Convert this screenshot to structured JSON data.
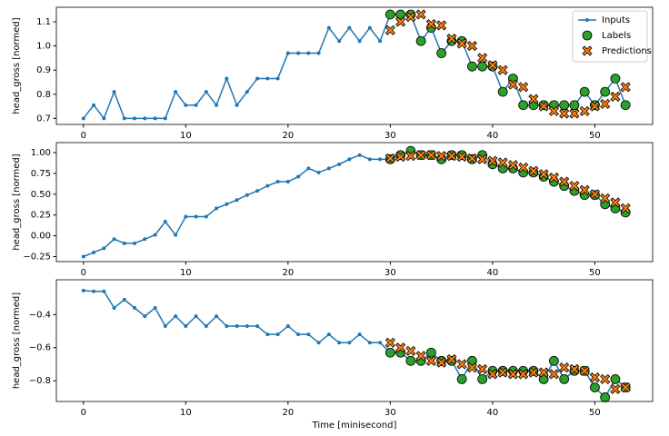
{
  "chart_data": [
    {
      "type": "line",
      "ylabel": "head_gross [normed]",
      "legend": "upper right",
      "xlim": [
        -2.65,
        55.65
      ],
      "xticks": [
        0,
        10,
        20,
        30,
        40,
        50
      ],
      "ylim": [
        0.675,
        1.16
      ],
      "yticks": [
        0.7,
        0.8,
        0.9,
        {
          "value": 1,
          "label": "1.0"
        },
        1.1
      ],
      "series": [
        {
          "name": "Inputs",
          "color": "#1f77b4",
          "marker": "line",
          "x": [
            0,
            1,
            2,
            3,
            4,
            5,
            6,
            7,
            8,
            9,
            10,
            11,
            12,
            13,
            14,
            15,
            16,
            17,
            18,
            19,
            20,
            21,
            22,
            23,
            24,
            25,
            26,
            27,
            28,
            29,
            30,
            31,
            32,
            33,
            34,
            35,
            36,
            37,
            38,
            39,
            40,
            41,
            42,
            43,
            44,
            45,
            46,
            47,
            48,
            49,
            50,
            51,
            52,
            53
          ],
          "values": [
            0.7,
            0.755,
            0.7,
            0.81,
            0.7,
            0.7,
            0.7,
            0.7,
            0.7,
            0.81,
            0.755,
            0.755,
            0.81,
            0.755,
            0.865,
            0.755,
            0.81,
            0.865,
            0.865,
            0.865,
            0.97,
            0.97,
            0.97,
            0.97,
            1.075,
            1.02,
            1.075,
            1.02,
            1.075,
            1.02,
            1.13,
            1.13,
            1.13,
            1.02,
            1.075,
            0.97,
            1.02,
            1.02,
            0.915,
            0.915,
            0.915,
            0.81,
            0.865,
            0.755,
            0.755,
            0.755,
            0.755,
            0.755,
            0.755,
            0.81,
            0.755,
            0.81,
            0.865,
            0.755
          ]
        },
        {
          "name": "Labels",
          "color": "#2ca02c",
          "marker": "o",
          "x": [
            30,
            31,
            32,
            33,
            34,
            35,
            36,
            37,
            38,
            39,
            40,
            41,
            42,
            43,
            44,
            45,
            46,
            47,
            48,
            49,
            50,
            51,
            52,
            53
          ],
          "values": [
            1.13,
            1.13,
            1.13,
            1.02,
            1.075,
            0.97,
            1.02,
            1.02,
            0.915,
            0.915,
            0.915,
            0.81,
            0.865,
            0.755,
            0.755,
            0.755,
            0.755,
            0.755,
            0.755,
            0.81,
            0.755,
            0.81,
            0.865,
            0.755
          ]
        },
        {
          "name": "Predictions",
          "color": "#ff7f0e",
          "marker": "X",
          "x": [
            30,
            31,
            32,
            33,
            34,
            35,
            36,
            37,
            38,
            39,
            40,
            41,
            42,
            43,
            44,
            45,
            46,
            47,
            48,
            49,
            50,
            51,
            52,
            53
          ],
          "values": [
            1.065,
            1.1,
            1.12,
            1.13,
            1.09,
            1.085,
            1.03,
            1.01,
            1.0,
            0.95,
            0.92,
            0.9,
            0.84,
            0.83,
            0.78,
            0.75,
            0.73,
            0.72,
            0.72,
            0.73,
            0.75,
            0.76,
            0.79,
            0.83
          ]
        }
      ]
    },
    {
      "type": "line",
      "ylabel": "head_gross [normed]",
      "xlim": [
        -2.65,
        55.65
      ],
      "xticks": [
        0,
        10,
        20,
        30,
        40,
        50
      ],
      "ylim": [
        -0.31,
        1.12
      ],
      "yticks": [
        {
          "value": -0.25,
          "label": "−0.25"
        },
        {
          "value": 0,
          "label": "0.00"
        },
        0.25,
        {
          "value": 0.5,
          "label": "0.50"
        },
        0.75,
        {
          "value": 1,
          "label": "1.00"
        }
      ],
      "series": [
        {
          "name": "Inputs",
          "color": "#1f77b4",
          "marker": "line",
          "x": [
            0,
            1,
            2,
            3,
            4,
            5,
            6,
            7,
            8,
            9,
            10,
            11,
            12,
            13,
            14,
            15,
            16,
            17,
            18,
            19,
            20,
            21,
            22,
            23,
            24,
            25,
            26,
            27,
            28,
            29,
            30,
            31,
            32,
            33,
            34,
            35,
            36,
            37,
            38,
            39,
            40,
            41,
            42,
            43,
            44,
            45,
            46,
            47,
            48,
            49,
            50,
            51,
            52,
            53
          ],
          "values": [
            -0.25,
            -0.2,
            -0.15,
            -0.04,
            -0.09,
            -0.09,
            -0.04,
            0.01,
            0.17,
            0.01,
            0.23,
            0.23,
            0.23,
            0.33,
            0.38,
            0.43,
            0.49,
            0.54,
            0.6,
            0.65,
            0.65,
            0.71,
            0.81,
            0.76,
            0.81,
            0.86,
            0.92,
            0.97,
            0.92,
            0.92,
            0.92,
            0.97,
            1.02,
            0.97,
            0.97,
            0.92,
            0.97,
            0.97,
            0.92,
            0.97,
            0.86,
            0.81,
            0.81,
            0.76,
            0.76,
            0.71,
            0.65,
            0.6,
            0.54,
            0.49,
            0.49,
            0.38,
            0.33,
            0.28
          ]
        },
        {
          "name": "Labels",
          "color": "#2ca02c",
          "marker": "o",
          "x": [
            30,
            31,
            32,
            33,
            34,
            35,
            36,
            37,
            38,
            39,
            40,
            41,
            42,
            43,
            44,
            45,
            46,
            47,
            48,
            49,
            50,
            51,
            52,
            53
          ],
          "values": [
            0.92,
            0.97,
            1.02,
            0.97,
            0.97,
            0.92,
            0.97,
            0.97,
            0.92,
            0.97,
            0.86,
            0.81,
            0.81,
            0.76,
            0.76,
            0.71,
            0.65,
            0.6,
            0.54,
            0.49,
            0.49,
            0.38,
            0.33,
            0.28
          ]
        },
        {
          "name": "Predictions",
          "color": "#ff7f0e",
          "marker": "X",
          "x": [
            30,
            31,
            32,
            33,
            34,
            35,
            36,
            37,
            38,
            39,
            40,
            41,
            42,
            43,
            44,
            45,
            46,
            47,
            48,
            49,
            50,
            51,
            52,
            53
          ],
          "values": [
            0.93,
            0.95,
            0.96,
            0.97,
            0.97,
            0.96,
            0.96,
            0.95,
            0.93,
            0.92,
            0.9,
            0.88,
            0.85,
            0.82,
            0.78,
            0.74,
            0.7,
            0.65,
            0.6,
            0.55,
            0.5,
            0.45,
            0.4,
            0.33
          ]
        }
      ]
    },
    {
      "type": "line",
      "ylabel": "head_gross [normed]",
      "xlabel": "Time [minisecond]",
      "xlim": [
        -2.65,
        55.65
      ],
      "xticks": [
        0,
        10,
        20,
        30,
        40,
        50
      ],
      "ylim": [
        -0.925,
        -0.19
      ],
      "yticks": [
        {
          "value": -0.8,
          "label": "−0.8"
        },
        {
          "value": -0.6,
          "label": "−0.6"
        },
        {
          "value": -0.4,
          "label": "−0.4"
        }
      ],
      "series": [
        {
          "name": "Inputs",
          "color": "#1f77b4",
          "marker": "line",
          "x": [
            0,
            1,
            2,
            3,
            4,
            5,
            6,
            7,
            8,
            9,
            10,
            11,
            12,
            13,
            14,
            15,
            16,
            17,
            18,
            19,
            20,
            21,
            22,
            23,
            24,
            25,
            26,
            27,
            28,
            29,
            30,
            31,
            32,
            33,
            34,
            35,
            36,
            37,
            38,
            39,
            40,
            41,
            42,
            43,
            44,
            45,
            46,
            47,
            48,
            49,
            50,
            51,
            52,
            53
          ],
          "values": [
            -0.255,
            -0.26,
            -0.26,
            -0.36,
            -0.31,
            -0.36,
            -0.41,
            -0.36,
            -0.47,
            -0.41,
            -0.47,
            -0.41,
            -0.47,
            -0.41,
            -0.47,
            -0.47,
            -0.47,
            -0.47,
            -0.52,
            -0.52,
            -0.47,
            -0.52,
            -0.52,
            -0.57,
            -0.52,
            -0.57,
            -0.57,
            -0.52,
            -0.57,
            -0.57,
            -0.63,
            -0.63,
            -0.68,
            -0.68,
            -0.63,
            -0.68,
            -0.68,
            -0.79,
            -0.68,
            -0.79,
            -0.74,
            -0.74,
            -0.74,
            -0.74,
            -0.74,
            -0.79,
            -0.68,
            -0.79,
            -0.74,
            -0.74,
            -0.84,
            -0.9,
            -0.79,
            -0.84
          ]
        },
        {
          "name": "Labels",
          "color": "#2ca02c",
          "marker": "o",
          "x": [
            30,
            31,
            32,
            33,
            34,
            35,
            36,
            37,
            38,
            39,
            40,
            41,
            42,
            43,
            44,
            45,
            46,
            47,
            48,
            49,
            50,
            51,
            52,
            53
          ],
          "values": [
            -0.63,
            -0.63,
            -0.68,
            -0.68,
            -0.63,
            -0.68,
            -0.68,
            -0.79,
            -0.68,
            -0.79,
            -0.74,
            -0.74,
            -0.74,
            -0.74,
            -0.74,
            -0.79,
            -0.68,
            -0.79,
            -0.74,
            -0.74,
            -0.84,
            -0.9,
            -0.79,
            -0.84
          ]
        },
        {
          "name": "Predictions",
          "color": "#ff7f0e",
          "marker": "X",
          "x": [
            30,
            31,
            32,
            33,
            34,
            35,
            36,
            37,
            38,
            39,
            40,
            41,
            42,
            43,
            44,
            45,
            46,
            47,
            48,
            49,
            50,
            51,
            52,
            53
          ],
          "values": [
            -0.57,
            -0.6,
            -0.62,
            -0.65,
            -0.68,
            -0.69,
            -0.67,
            -0.7,
            -0.72,
            -0.73,
            -0.76,
            -0.75,
            -0.76,
            -0.76,
            -0.75,
            -0.75,
            -0.76,
            -0.72,
            -0.73,
            -0.74,
            -0.78,
            -0.79,
            -0.85,
            -0.84
          ]
        }
      ]
    }
  ]
}
